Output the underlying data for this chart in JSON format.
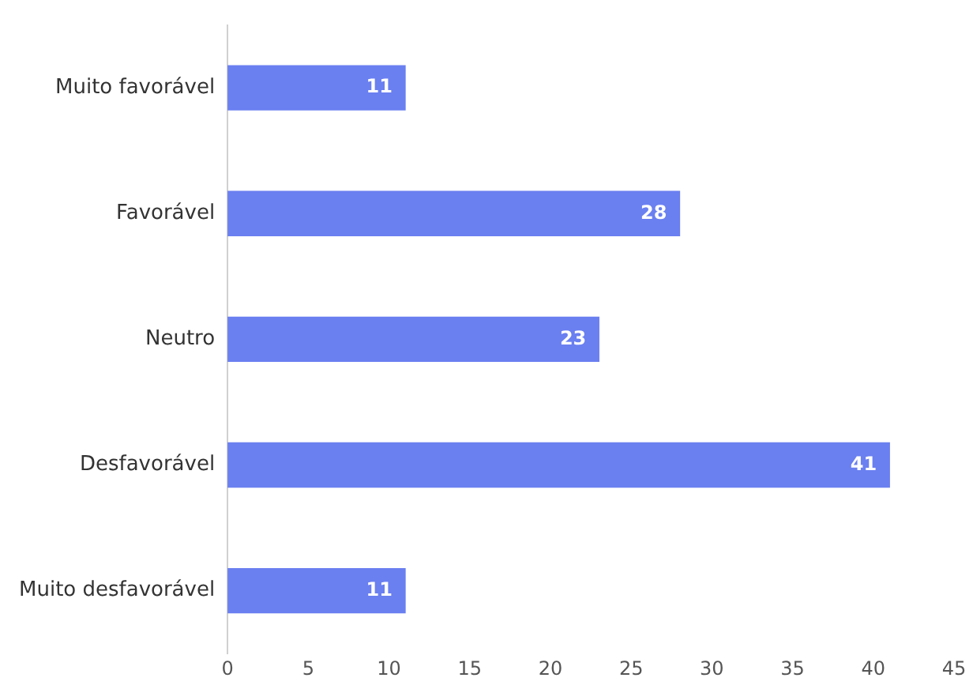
{
  "chart_data": {
    "type": "bar",
    "orientation": "horizontal",
    "categories": [
      "Muito favorável",
      "Favorável",
      "Neutro",
      "Desfavorável",
      "Muito desfavorável"
    ],
    "values": [
      11,
      28,
      23,
      41,
      11
    ],
    "color": "#6a7ff0",
    "xlim": [
      0,
      45
    ],
    "xticks": [
      0,
      5,
      10,
      15,
      20,
      25,
      30,
      35,
      40,
      45
    ],
    "grid": false,
    "legend": false,
    "data_labels": true
  }
}
